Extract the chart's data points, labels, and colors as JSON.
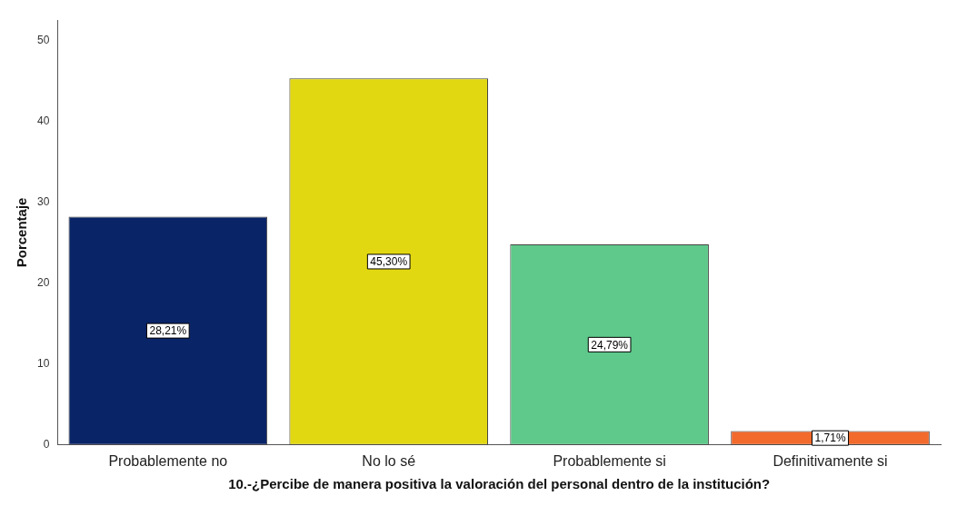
{
  "chart_data": {
    "type": "bar",
    "xlabel": "10.-¿Percibe de manera positiva la valoración del personal dentro de la institución?",
    "ylabel": "Porcentaje",
    "categories": [
      "Probablemente no",
      "No lo sé",
      "Probablemente si",
      "Definitivamente si"
    ],
    "values": [
      28.21,
      45.3,
      24.79,
      1.71
    ],
    "colors": [
      "#0a2468",
      "#e2d812",
      "#5ec98a",
      "#f26a2c"
    ],
    "value_labels": [
      "28,21%",
      "45,30%",
      "24,79%",
      "1,71%"
    ],
    "ylim": [
      0,
      52.5
    ],
    "yticks": [
      0,
      10,
      20,
      30,
      40,
      50
    ],
    "grid": false,
    "legend": false
  }
}
